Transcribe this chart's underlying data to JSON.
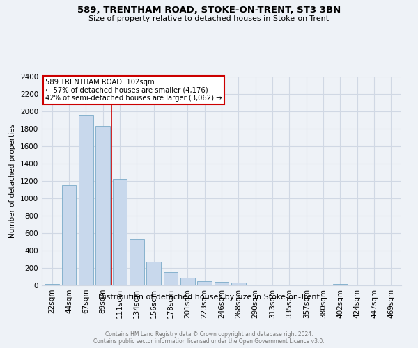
{
  "title1": "589, TRENTHAM ROAD, STOKE-ON-TRENT, ST3 3BN",
  "title2": "Size of property relative to detached houses in Stoke-on-Trent",
  "xlabel": "Distribution of detached houses by size in Stoke-on-Trent",
  "ylabel": "Number of detached properties",
  "categories": [
    "22sqm",
    "44sqm",
    "67sqm",
    "89sqm",
    "111sqm",
    "134sqm",
    "156sqm",
    "178sqm",
    "201sqm",
    "223sqm",
    "246sqm",
    "268sqm",
    "290sqm",
    "313sqm",
    "335sqm",
    "357sqm",
    "380sqm",
    "402sqm",
    "424sqm",
    "447sqm",
    "469sqm"
  ],
  "values": [
    20,
    1155,
    1960,
    1835,
    1225,
    525,
    270,
    155,
    85,
    52,
    38,
    30,
    8,
    5,
    3,
    2,
    2,
    18,
    2,
    2,
    2
  ],
  "bar_color": "#c8d8ec",
  "bar_edge_color": "#7aaac8",
  "annotation_text": "589 TRENTHAM ROAD: 102sqm\n← 57% of detached houses are smaller (4,176)\n42% of semi-detached houses are larger (3,062) →",
  "annotation_box_color": "#ffffff",
  "annotation_box_edge": "#cc0000",
  "vline_x": 3.5,
  "vline_color": "#cc0000",
  "footer_line1": "Contains HM Land Registry data © Crown copyright and database right 2024.",
  "footer_line2": "Contains public sector information licensed under the Open Government Licence v3.0.",
  "ylim": [
    0,
    2400
  ],
  "background_color": "#eef2f7",
  "grid_color": "#d0d8e4"
}
